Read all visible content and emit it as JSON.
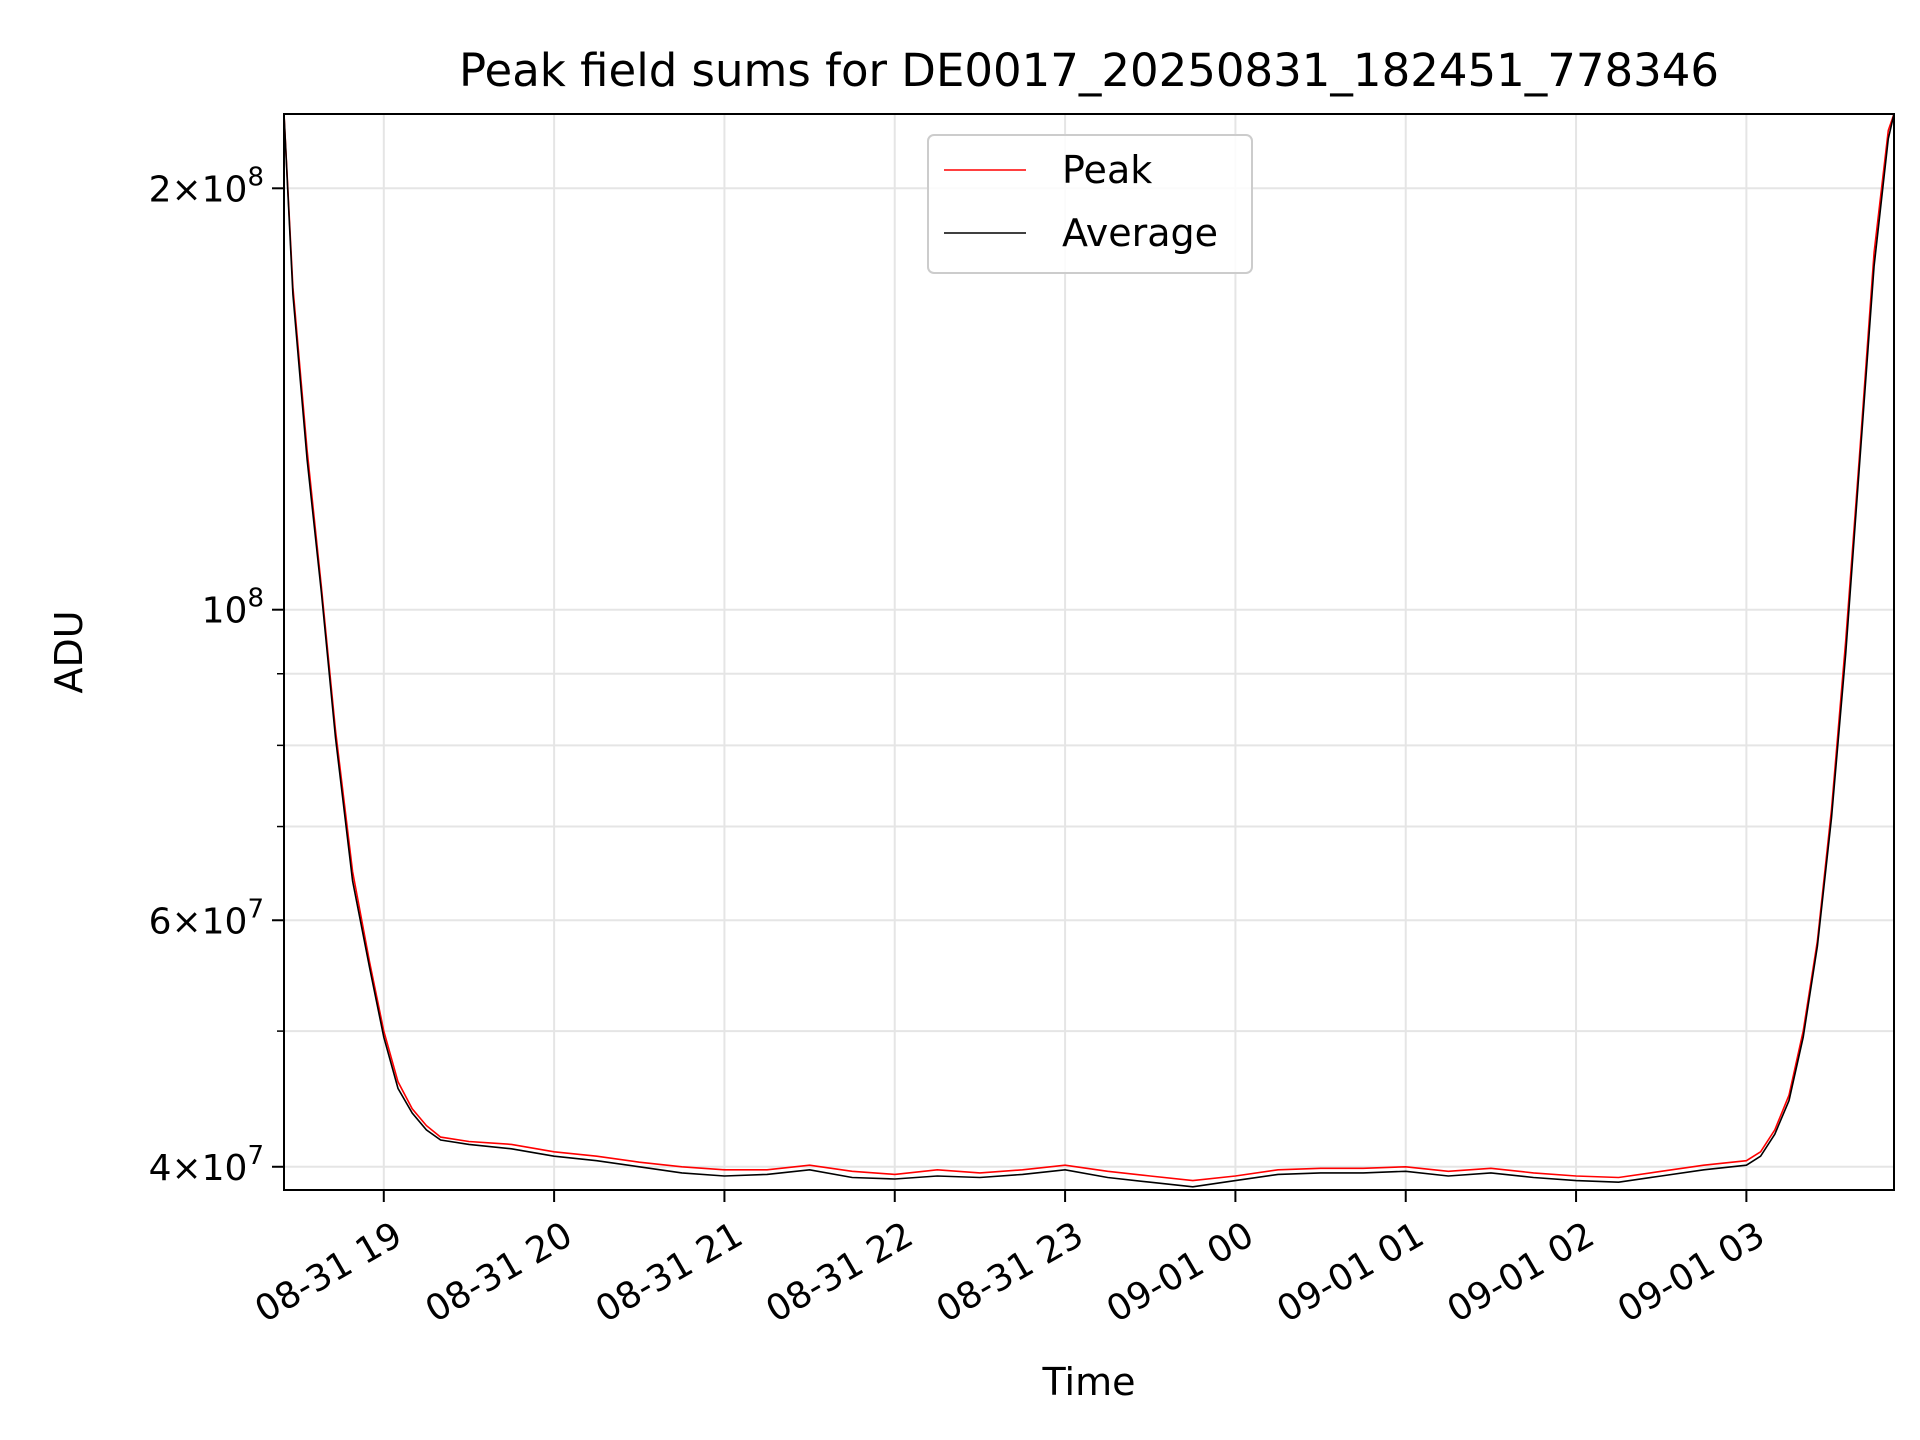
{
  "chart_data": {
    "type": "line",
    "title": "Peak field sums for DE0017_20250831_182451_778346",
    "xlabel": "Time",
    "ylabel": "ADU",
    "yscale": "log",
    "ylim": [
      38500000,
      226000000
    ],
    "xlim": [
      "2025-08-31 18:24:51",
      "2025-09-01 03:52:00"
    ],
    "x_ticks": [
      "2025-08-31 19:00",
      "2025-08-31 20:00",
      "2025-08-31 21:00",
      "2025-08-31 22:00",
      "2025-08-31 23:00",
      "2025-09-01 00:00",
      "2025-09-01 01:00",
      "2025-09-01 02:00",
      "2025-09-01 03:00"
    ],
    "x_tick_labels": [
      "08-31 19",
      "08-31 20",
      "08-31 21",
      "08-31 22",
      "08-31 23",
      "09-01 00",
      "09-01 01",
      "09-01 02",
      "09-01 03"
    ],
    "y_major_ticks": [
      40000000,
      60000000,
      100000000,
      200000000
    ],
    "y_minor_ticks": [
      50000000,
      70000000,
      80000000,
      90000000
    ],
    "grid": true,
    "legend_position": "top-center",
    "series": [
      {
        "name": "Peak",
        "color": "#ff0000",
        "x": [
          "2025-08-31 18:24:51",
          "2025-08-31 18:28",
          "2025-08-31 18:33",
          "2025-08-31 18:38",
          "2025-08-31 18:43",
          "2025-08-31 18:49",
          "2025-08-31 18:55",
          "2025-08-31 19:00",
          "2025-08-31 19:05",
          "2025-08-31 19:10",
          "2025-08-31 19:15",
          "2025-08-31 19:20",
          "2025-08-31 19:30",
          "2025-08-31 19:45",
          "2025-08-31 20:00",
          "2025-08-31 20:15",
          "2025-08-31 20:30",
          "2025-08-31 20:45",
          "2025-08-31 21:00",
          "2025-08-31 21:15",
          "2025-08-31 21:30",
          "2025-08-31 21:45",
          "2025-08-31 22:00",
          "2025-08-31 22:15",
          "2025-08-31 22:30",
          "2025-08-31 22:45",
          "2025-08-31 23:00",
          "2025-08-31 23:15",
          "2025-08-31 23:30",
          "2025-08-31 23:45",
          "2025-09-01 00:00",
          "2025-09-01 00:15",
          "2025-09-01 00:30",
          "2025-09-01 00:45",
          "2025-09-01 01:00",
          "2025-09-01 01:15",
          "2025-09-01 01:30",
          "2025-09-01 01:45",
          "2025-09-01 02:00",
          "2025-09-01 02:15",
          "2025-09-01 02:30",
          "2025-09-01 02:45",
          "2025-09-01 03:00",
          "2025-09-01 03:05",
          "2025-09-01 03:10",
          "2025-09-01 03:15",
          "2025-09-01 03:20",
          "2025-09-01 03:25",
          "2025-09-01 03:30",
          "2025-09-01 03:35",
          "2025-09-01 03:40",
          "2025-09-01 03:45",
          "2025-09-01 03:50",
          "2025-09-01 03:52"
        ],
        "values": [
          226000000,
          170000000,
          130000000,
          104000000,
          82000000,
          65000000,
          56000000,
          50000000,
          46000000,
          44000000,
          42800000,
          42000000,
          41700000,
          41500000,
          41000000,
          40700000,
          40300000,
          40000000,
          39800000,
          39800000,
          40100000,
          39700000,
          39500000,
          39800000,
          39600000,
          39800000,
          40100000,
          39700000,
          39400000,
          39100000,
          39400000,
          39800000,
          39900000,
          39900000,
          40000000,
          39700000,
          39900000,
          39600000,
          39400000,
          39300000,
          39700000,
          40100000,
          40400000,
          41000000,
          42500000,
          45000000,
          50000000,
          58000000,
          72000000,
          95000000,
          130000000,
          180000000,
          220000000,
          226000000
        ]
      },
      {
        "name": "Average",
        "color": "#000000",
        "x": [
          "2025-08-31 18:24:51",
          "2025-08-31 18:28",
          "2025-08-31 18:33",
          "2025-08-31 18:38",
          "2025-08-31 18:43",
          "2025-08-31 18:49",
          "2025-08-31 18:55",
          "2025-08-31 19:00",
          "2025-08-31 19:05",
          "2025-08-31 19:10",
          "2025-08-31 19:15",
          "2025-08-31 19:20",
          "2025-08-31 19:30",
          "2025-08-31 19:45",
          "2025-08-31 20:00",
          "2025-08-31 20:15",
          "2025-08-31 20:30",
          "2025-08-31 20:45",
          "2025-08-31 21:00",
          "2025-08-31 21:15",
          "2025-08-31 21:30",
          "2025-08-31 21:45",
          "2025-08-31 22:00",
          "2025-08-31 22:15",
          "2025-08-31 22:30",
          "2025-08-31 22:45",
          "2025-08-31 23:00",
          "2025-08-31 23:15",
          "2025-08-31 23:30",
          "2025-08-31 23:45",
          "2025-09-01 00:00",
          "2025-09-01 00:15",
          "2025-09-01 00:30",
          "2025-09-01 00:45",
          "2025-09-01 01:00",
          "2025-09-01 01:15",
          "2025-09-01 01:30",
          "2025-09-01 01:45",
          "2025-09-01 02:00",
          "2025-09-01 02:15",
          "2025-09-01 02:30",
          "2025-09-01 02:45",
          "2025-09-01 03:00",
          "2025-09-01 03:05",
          "2025-09-01 03:10",
          "2025-09-01 03:15",
          "2025-09-01 03:20",
          "2025-09-01 03:25",
          "2025-09-01 03:30",
          "2025-09-01 03:35",
          "2025-09-01 03:40",
          "2025-09-01 03:45",
          "2025-09-01 03:50",
          "2025-09-01 03:52"
        ],
        "values": [
          226000000,
          168000000,
          128000000,
          103000000,
          81000000,
          64000000,
          55500000,
          49500000,
          45500000,
          43700000,
          42500000,
          41800000,
          41500000,
          41200000,
          40700000,
          40400000,
          40000000,
          39600000,
          39400000,
          39500000,
          39800000,
          39300000,
          39200000,
          39400000,
          39300000,
          39500000,
          39800000,
          39300000,
          39000000,
          38700000,
          39100000,
          39500000,
          39600000,
          39600000,
          39700000,
          39400000,
          39600000,
          39300000,
          39100000,
          39000000,
          39400000,
          39800000,
          40100000,
          40700000,
          42200000,
          44600000,
          49500000,
          57500000,
          71000000,
          93000000,
          128000000,
          176000000,
          217000000,
          226000000
        ]
      }
    ]
  }
}
